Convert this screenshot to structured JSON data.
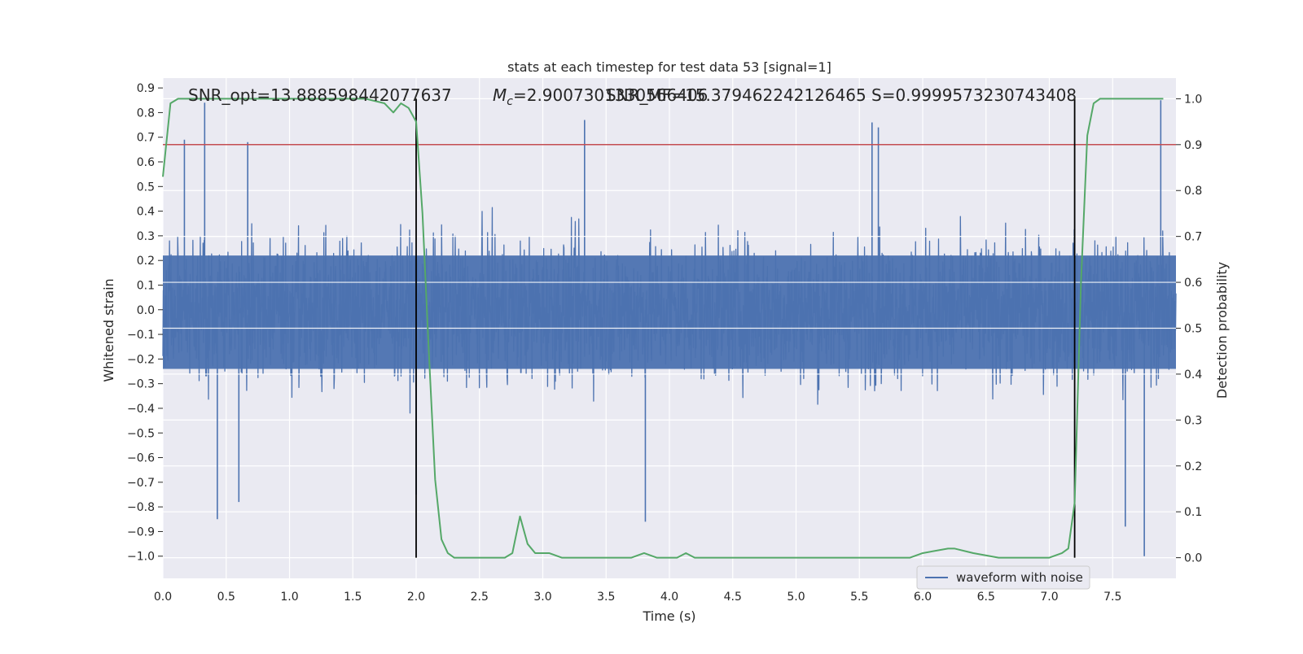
{
  "chart_data": {
    "type": "line",
    "title": "stats at each timestep for test data 53 [signal=1]",
    "xlabel": "Time (s)",
    "ylabel_left": "Whitened strain",
    "ylabel_right": "Detection probability",
    "xlim": [
      0.0,
      8.0
    ],
    "ylim_left": [
      -1.09,
      0.94
    ],
    "ylim_right": [
      -0.045,
      1.045
    ],
    "x_ticks": [
      "0.0",
      "0.5",
      "1.0",
      "1.5",
      "2.0",
      "2.5",
      "3.0",
      "3.5",
      "4.0",
      "4.5",
      "5.0",
      "5.5",
      "6.0",
      "6.5",
      "7.0",
      "7.5"
    ],
    "y_left_ticks": [
      "0.9",
      "0.8",
      "0.7",
      "0.6",
      "0.5",
      "0.4",
      "0.3",
      "0.2",
      "0.1",
      "0.0",
      "−0.1",
      "−0.2",
      "−0.3",
      "−0.4",
      "−0.5",
      "−0.6",
      "−0.7",
      "−0.8",
      "−0.9",
      "−1.0"
    ],
    "y_right_ticks": [
      "0.0",
      "0.1",
      "0.2",
      "0.3",
      "0.4",
      "0.5",
      "0.6",
      "0.7",
      "0.8",
      "0.9",
      "1.0"
    ],
    "grid": true,
    "legend": {
      "location": "lower right",
      "entries": [
        "waveform with noise"
      ]
    },
    "annotations": {
      "snr_opt": "SNR_opt=13.888598442077637",
      "mc_symbol": "M",
      "mc_subscript": "c",
      "mc_value": "=2.9007301330566406",
      "snr_mf": "SNR_MF=15.379462242126465",
      "s_value": "S=0.9999573230743408"
    },
    "threshold_line": {
      "value": 0.9,
      "axis": "right",
      "color": "#c44e52"
    },
    "event_markers": [
      2.0,
      7.2
    ],
    "series": [
      {
        "name": "waveform with noise",
        "axis": "left",
        "color": "#4c72b0",
        "description_envelope": {
          "typical_max": 0.45,
          "typical_min": -0.45
        },
        "notable_peaks": [
          {
            "x": 0.33,
            "y": 0.84
          },
          {
            "x": 0.17,
            "y": 0.69
          },
          {
            "x": 0.43,
            "y": -0.85
          },
          {
            "x": 0.6,
            "y": -0.78
          },
          {
            "x": 0.67,
            "y": 0.68
          },
          {
            "x": 2.0,
            "y": -0.75
          },
          {
            "x": 3.33,
            "y": 0.77
          },
          {
            "x": 3.81,
            "y": -0.86
          },
          {
            "x": 5.6,
            "y": 0.76
          },
          {
            "x": 5.65,
            "y": 0.74
          },
          {
            "x": 7.6,
            "y": -0.88
          },
          {
            "x": 7.75,
            "y": -1.0
          },
          {
            "x": 7.88,
            "y": 0.85
          }
        ]
      },
      {
        "name": "",
        "axis": "right",
        "color": "#55a868",
        "x": [
          0.0,
          0.06,
          0.12,
          0.2,
          0.4,
          0.8,
          1.2,
          1.6,
          1.75,
          1.82,
          1.88,
          1.94,
          2.0,
          2.05,
          2.1,
          2.15,
          2.2,
          2.25,
          2.3,
          2.4,
          2.6,
          2.7,
          2.76,
          2.82,
          2.88,
          2.94,
          3.05,
          3.15,
          3.3,
          3.5,
          3.7,
          3.8,
          3.9,
          4.0,
          4.06,
          4.13,
          4.2,
          4.5,
          5.0,
          5.5,
          5.9,
          6.0,
          6.2,
          6.25,
          6.4,
          6.6,
          7.0,
          7.1,
          7.15,
          7.2,
          7.25,
          7.3,
          7.35,
          7.4,
          7.5,
          7.9
        ],
        "y": [
          0.83,
          0.99,
          1.0,
          1.0,
          1.0,
          1.0,
          1.0,
          1.0,
          0.99,
          0.97,
          0.99,
          0.98,
          0.95,
          0.75,
          0.45,
          0.17,
          0.04,
          0.01,
          0.0,
          0.0,
          0.0,
          0.0,
          0.01,
          0.09,
          0.03,
          0.01,
          0.01,
          0.0,
          0.0,
          0.0,
          0.0,
          0.01,
          0.0,
          0.0,
          0.0,
          0.01,
          0.0,
          0.0,
          0.0,
          0.0,
          0.0,
          0.01,
          0.02,
          0.02,
          0.01,
          0.0,
          0.0,
          0.01,
          0.02,
          0.12,
          0.6,
          0.92,
          0.99,
          1.0,
          1.0,
          1.0
        ]
      }
    ]
  }
}
